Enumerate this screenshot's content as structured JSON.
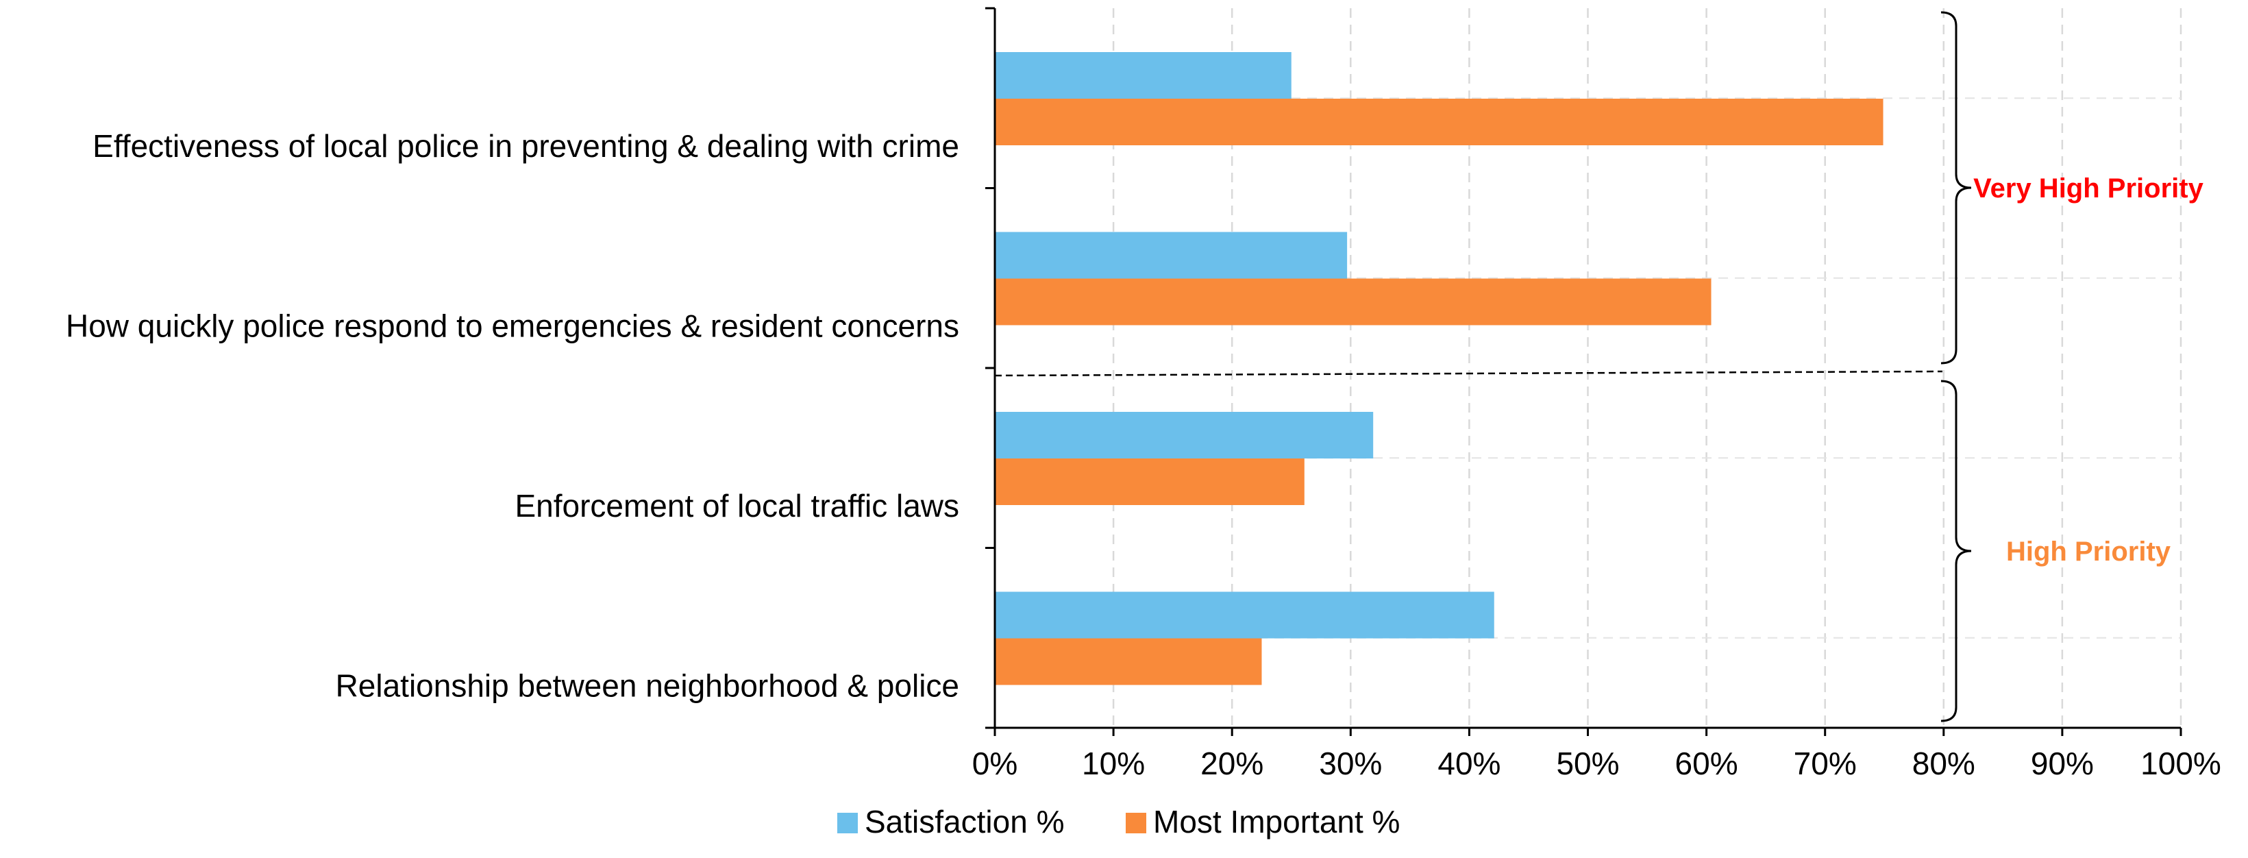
{
  "chart_data": {
    "type": "bar",
    "orientation": "horizontal",
    "categories": [
      "Effectiveness of local police in preventing & dealing with crime",
      "How quickly police respond to emergencies & resident concerns",
      "Enforcement of local traffic laws",
      "Relationship between neighborhood & police"
    ],
    "series": [
      {
        "name": "Satisfaction %",
        "color": "#6BBFEB",
        "values": [
          25,
          29.7,
          31.9,
          42.1
        ]
      },
      {
        "name": "Most Important %",
        "color": "#F98A3A",
        "values": [
          74.9,
          60.4,
          26.1,
          22.5
        ]
      }
    ],
    "xlim": [
      0,
      100
    ],
    "xticks": [
      "0%",
      "10%",
      "20%",
      "30%",
      "40%",
      "50%",
      "60%",
      "70%",
      "80%",
      "90%",
      "100%"
    ],
    "grid": true,
    "legend_position": "bottom",
    "priority_groups": [
      {
        "label": "Very High Priority",
        "color": "#FF0000",
        "categories": [
          0,
          1
        ]
      },
      {
        "label": "High Priority",
        "color": "#F98A3A",
        "categories": [
          2,
          3
        ]
      }
    ],
    "title": "",
    "xlabel": "",
    "ylabel": ""
  }
}
